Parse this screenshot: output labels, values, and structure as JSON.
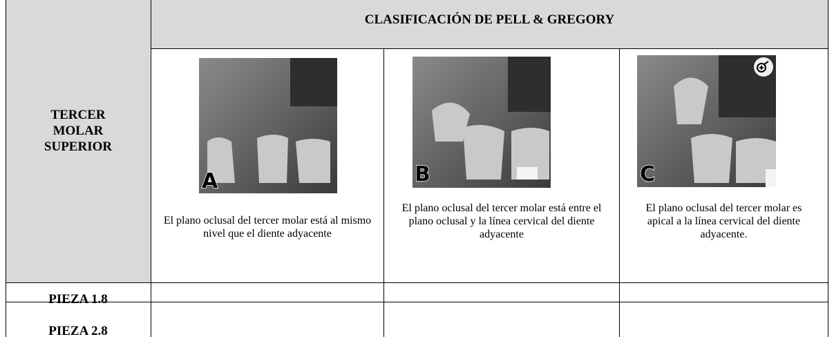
{
  "header": {
    "title": "CLASIFICACIÓN DE PELL & GREGORY"
  },
  "row_header": "TERCER MOLAR SUPERIOR",
  "classes": [
    {
      "label": "A",
      "description": "El plano oclusal del tercer molar está al mismo nivel que el diente adyacente"
    },
    {
      "label": "B",
      "description": "El plano oclusal del tercer molar está entre el plano oclusal y la línea cervical del diente adyacente"
    },
    {
      "label": "C",
      "description": "El plano oclusal del tercer molar es apical a la línea cervical del diente adyacente."
    }
  ],
  "rows": [
    "PIEZA 1.8",
    "PIEZA 2.8"
  ]
}
